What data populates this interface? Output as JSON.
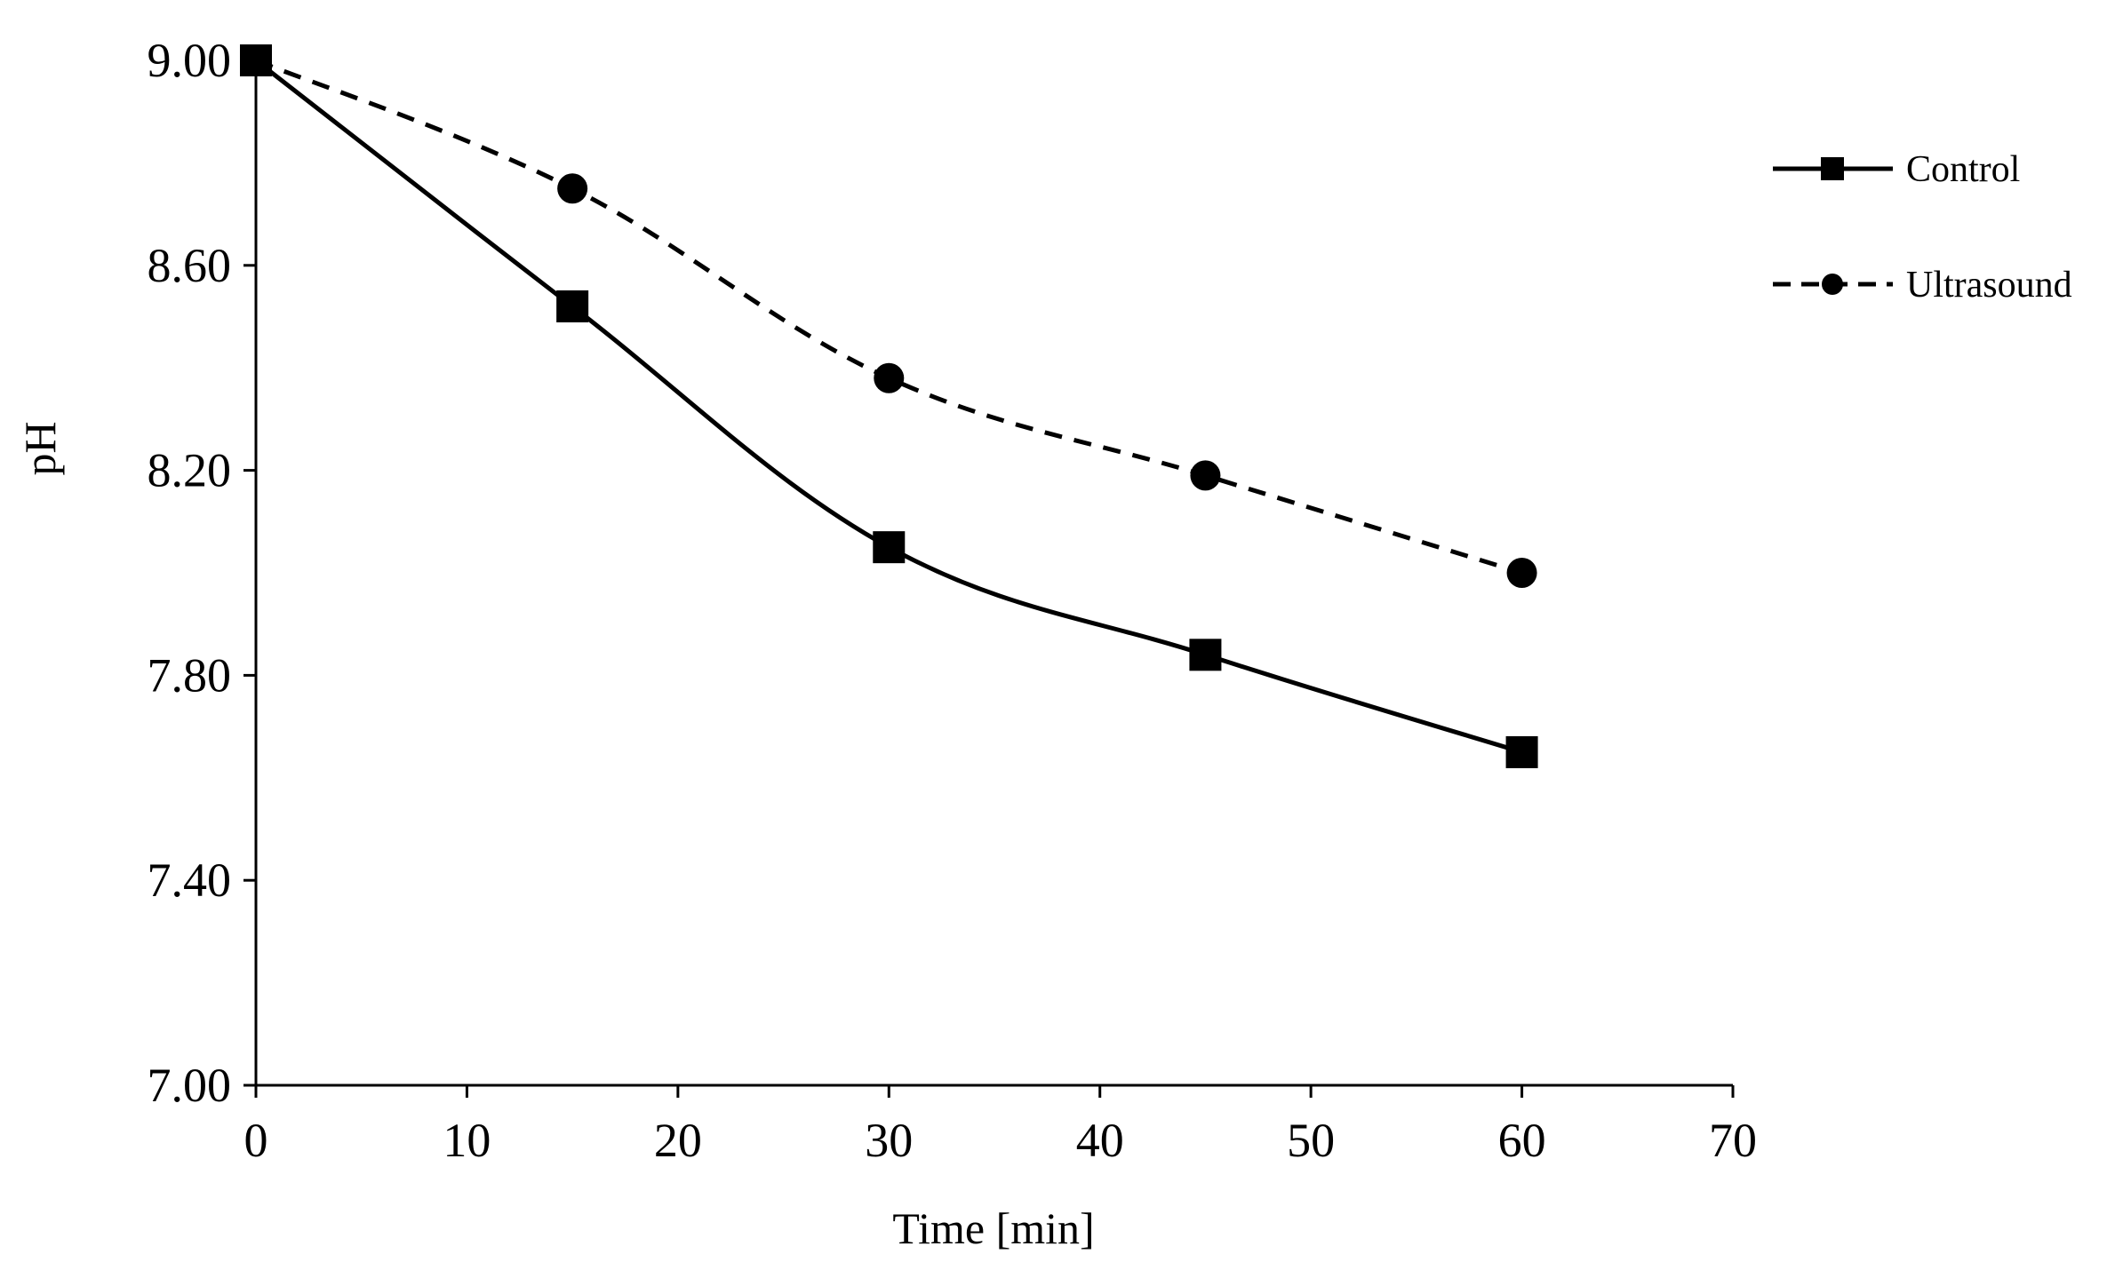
{
  "chart_data": {
    "type": "line",
    "title": "",
    "xlabel": "Time [min]",
    "ylabel": "pH",
    "xlim": [
      0,
      70
    ],
    "ylim": [
      7.0,
      9.0
    ],
    "x_ticks": [
      "0",
      "10",
      "20",
      "30",
      "40",
      "50",
      "60",
      "70"
    ],
    "y_ticks": [
      "7.00",
      "7.40",
      "7.80",
      "8.20",
      "8.60",
      "9.00"
    ],
    "grid": false,
    "legend_position": "right",
    "x": [
      0,
      15,
      30,
      45,
      60
    ],
    "series": [
      {
        "name": "Control",
        "values": [
          9.0,
          8.52,
          8.05,
          7.84,
          7.65
        ],
        "marker": "square",
        "line_style": "solid",
        "color": "#000000"
      },
      {
        "name": "Ultrasound",
        "values": [
          9.0,
          8.75,
          8.38,
          8.19,
          8.0
        ],
        "marker": "circle",
        "line_style": "dashed",
        "color": "#000000"
      }
    ]
  }
}
